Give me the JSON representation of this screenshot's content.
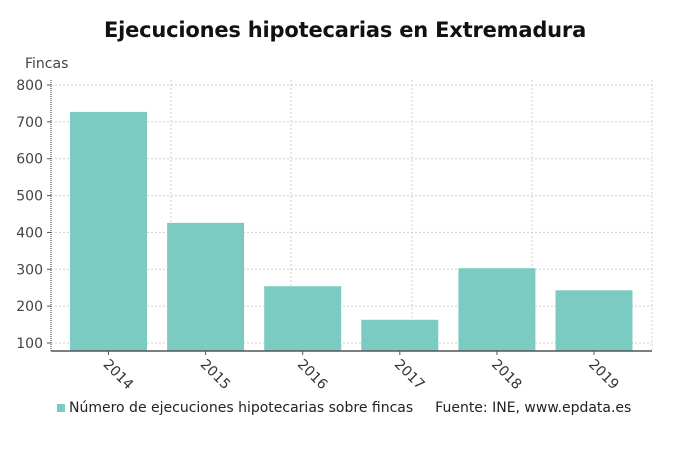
{
  "title": "Ejecuciones hipotecarias en Extremadura",
  "y_axis_label": "Fincas",
  "legend": {
    "series_label": "Número de ejecuciones hipotecarias sobre fincas",
    "source": "Fuente: INE, www.epdata.es"
  },
  "colors": {
    "bar": "#7ccbc3",
    "grid": "#cfcfcf",
    "axis": "#555555",
    "tick_text": "#444444"
  },
  "chart_data": {
    "type": "bar",
    "title": "Ejecuciones hipotecarias en Extremadura",
    "xlabel": "",
    "ylabel": "Fincas",
    "categories": [
      "2014",
      "2015",
      "2016",
      "2017",
      "2018",
      "2019"
    ],
    "series": [
      {
        "name": "Número de ejecuciones hipotecarias sobre fincas",
        "values": [
          727,
          426,
          254,
          163,
          303,
          243
        ]
      }
    ],
    "yticks": [
      100,
      200,
      300,
      400,
      500,
      600,
      700,
      800
    ],
    "ylim": [
      78,
      800
    ],
    "grid": true,
    "legend_position": "bottom",
    "x_tick_rotation": 45,
    "source": "Fuente: INE, www.epdata.es"
  }
}
